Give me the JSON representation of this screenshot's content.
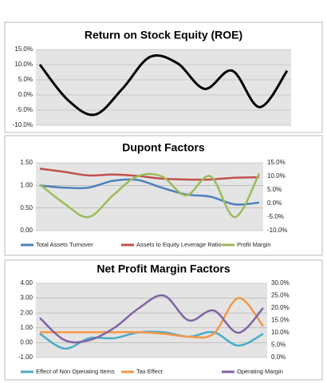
{
  "chart_data": [
    {
      "type": "line",
      "title": "Return on Stock Equity (ROE)",
      "values": [
        10,
        -1.5,
        -6.5,
        2,
        12.5,
        10.5,
        2,
        8,
        -4,
        8
      ],
      "color": "#000000",
      "ylim": [
        -10,
        15
      ],
      "yticks": [
        {
          "value": -10,
          "label": "-10.0%"
        },
        {
          "value": -5,
          "label": "-5.0%"
        },
        {
          "value": 0,
          "label": "0.0%"
        },
        {
          "value": 5,
          "label": "5.0%"
        },
        {
          "value": 10,
          "label": "10.0%"
        },
        {
          "value": 15,
          "label": "15.0%"
        }
      ],
      "grid": true
    },
    {
      "type": "line",
      "title": "Dupont Factors",
      "series": [
        {
          "name": "Total Assets Turnover",
          "color": "#4f81bd",
          "values": [
            1.0,
            0.95,
            0.95,
            1.1,
            1.12,
            0.95,
            0.8,
            0.75,
            0.58,
            0.62
          ]
        },
        {
          "name": "Assets to Equity Leverage Ratio",
          "color": "#c0504d",
          "values": [
            1.37,
            1.3,
            1.22,
            1.24,
            1.21,
            1.15,
            1.13,
            1.13,
            1.17,
            1.18
          ]
        },
        {
          "name": "Profit Margin",
          "color": "#9bbb59",
          "axis": "y2",
          "values": [
            7,
            0,
            -5,
            3,
            10,
            10,
            3,
            10,
            -5,
            11
          ]
        }
      ],
      "ylim": [
        0,
        1.5
      ],
      "yticks": [
        {
          "value": 0,
          "label": "0.00"
        },
        {
          "value": 0.5,
          "label": "0.50"
        },
        {
          "value": 1,
          "label": "1.00"
        },
        {
          "value": 1.5,
          "label": "1.50"
        }
      ],
      "y2lim": [
        -10,
        15
      ],
      "y2ticks": [
        {
          "value": -10,
          "label": "-10.0%"
        },
        {
          "value": -5,
          "label": "-5.0%"
        },
        {
          "value": 0,
          "label": "0.0%"
        },
        {
          "value": 5,
          "label": "5.0%"
        },
        {
          "value": 10,
          "label": "10.0%"
        },
        {
          "value": 15,
          "label": "15.0%"
        }
      ],
      "grid": true,
      "legend": "bottom"
    },
    {
      "type": "line",
      "title": "Net Profit Margin Factors",
      "series": [
        {
          "name": "Effect of Non Operating Items",
          "color": "#4bacc6",
          "values": [
            0.6,
            -0.4,
            0.3,
            0.3,
            0.7,
            0.7,
            0.4,
            0.7,
            -0.2,
            0.6
          ]
        },
        {
          "name": "Tax Effect",
          "color": "#f79646",
          "values": [
            0.7,
            0.7,
            0.7,
            0.7,
            0.7,
            0.6,
            0.4,
            0.6,
            3.0,
            1.1
          ]
        },
        {
          "name": "Operating Margin",
          "color": "#8064a2",
          "axis": "y2",
          "values": [
            16,
            7,
            7,
            12,
            20,
            25,
            15,
            19,
            10,
            20
          ]
        }
      ],
      "ylim": [
        -1,
        4
      ],
      "yticks": [
        {
          "value": -1,
          "label": "-1.00"
        },
        {
          "value": 0,
          "label": "0.00"
        },
        {
          "value": 1,
          "label": "1.00"
        },
        {
          "value": 2,
          "label": "2.00"
        },
        {
          "value": 3,
          "label": "3.00"
        },
        {
          "value": 4,
          "label": "4.00"
        }
      ],
      "y2lim": [
        0,
        30
      ],
      "y2ticks": [
        {
          "value": 0,
          "label": "0.0%"
        },
        {
          "value": 5,
          "label": "5.0%"
        },
        {
          "value": 10,
          "label": "10.0%"
        },
        {
          "value": 15,
          "label": "15.0%"
        },
        {
          "value": 20,
          "label": "20.0%"
        },
        {
          "value": 25,
          "label": "25.0%"
        },
        {
          "value": 30,
          "label": "30.0%"
        }
      ],
      "grid": true,
      "legend": "bottom"
    }
  ]
}
